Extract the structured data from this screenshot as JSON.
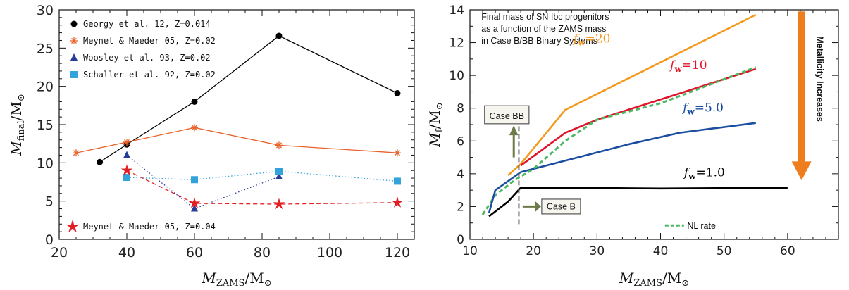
{
  "chart_data": [
    {
      "type": "line",
      "xlabel": "M_ZAMS/M⊙",
      "ylabel": "M_final/M⊙",
      "xlim": [
        20,
        125
      ],
      "ylim": [
        0,
        30
      ],
      "xticks": [
        20,
        40,
        60,
        80,
        100,
        120
      ],
      "yticks": [
        0,
        5,
        10,
        15,
        20,
        25,
        30
      ],
      "legend_position": "top-left",
      "series": [
        {
          "name": "Georgy et al. 12, Z=0.014",
          "color": "#000000",
          "marker": "circle",
          "line": "solid",
          "x": [
            32,
            40,
            60,
            85,
            120
          ],
          "y": [
            10.1,
            12.4,
            18.0,
            26.6,
            19.1
          ]
        },
        {
          "name": "Meynet & Maeder 05, Z=0.02",
          "color": "#e8622a",
          "marker": "asterisk",
          "line": "solid",
          "x": [
            25,
            40,
            60,
            85,
            120
          ],
          "y": [
            11.3,
            12.7,
            14.6,
            12.3,
            11.3
          ]
        },
        {
          "name": "Woosley et al. 93, Z=0.02",
          "color": "#283c9a",
          "marker": "triangle",
          "line": "dotted",
          "x": [
            40,
            60,
            85
          ],
          "y": [
            11.0,
            4.0,
            8.2
          ]
        },
        {
          "name": "Schaller et al. 92, Z=0.02",
          "color": "#33a3dc",
          "marker": "square",
          "line": "dotted",
          "x": [
            40,
            60,
            85,
            120
          ],
          "y": [
            8.1,
            7.8,
            8.9,
            7.6
          ]
        },
        {
          "name": "Meynet & Maeder 05, Z=0.04",
          "color": "#e31e24",
          "marker": "star",
          "line": "dashed",
          "x": [
            40,
            60,
            85,
            120
          ],
          "y": [
            9.0,
            4.7,
            4.6,
            4.8
          ]
        }
      ]
    },
    {
      "type": "line",
      "xlabel": "M_ZAMS/M⊙",
      "ylabel": "M_f/M⊙",
      "xlim": [
        10,
        68
      ],
      "ylim": [
        0,
        14
      ],
      "xticks": [
        10,
        20,
        30,
        40,
        50,
        60
      ],
      "yticks": [
        0,
        2,
        4,
        6,
        8,
        10,
        12,
        14
      ],
      "title_text": [
        "Final mass of SN Ibc progenitors",
        "as a function of the ZAMS mass",
        "in Case B/BB Binary Systems"
      ],
      "series": [
        {
          "name": "f_w=20",
          "color": "#f39a1e",
          "line": "solid",
          "x": [
            16,
            18,
            25,
            55
          ],
          "y": [
            3.9,
            4.6,
            7.9,
            13.7
          ]
        },
        {
          "name": "f_w=10",
          "color": "#e0142a",
          "line": "solid",
          "x": [
            18,
            25,
            30,
            43,
            55
          ],
          "y": [
            4.5,
            6.5,
            7.3,
            8.9,
            10.4
          ]
        },
        {
          "name": "f_w=5.0",
          "color": "#1b4ea0",
          "line": "solid",
          "x": [
            18,
            25,
            35,
            43,
            55
          ],
          "y": [
            4.1,
            4.8,
            5.8,
            6.5,
            7.1
          ]
        },
        {
          "name": "f_w=1.0",
          "color": "#000000",
          "line": "solid",
          "x": [
            13,
            16,
            18,
            25,
            40,
            60
          ],
          "y": [
            1.4,
            2.3,
            3.15,
            3.15,
            3.1,
            3.15
          ]
        },
        {
          "name": "NL rate",
          "color": "#4cb863",
          "line": "dashed",
          "x": [
            12,
            14,
            17,
            20,
            25,
            30,
            40,
            55
          ],
          "y": [
            1.5,
            2.7,
            3.6,
            4.3,
            6.0,
            7.3,
            8.3,
            10.5
          ]
        },
        {
          "name": "",
          "color": "#1b4ea0",
          "line": "solid",
          "x": [
            13,
            14,
            18
          ],
          "y": [
            1.6,
            3.0,
            4.1
          ]
        }
      ],
      "annotations": {
        "case_bb": "Case BB",
        "case_b": "Case B",
        "metallicity": "Metallicity Increases",
        "nl_rate": "NL rate"
      }
    }
  ]
}
